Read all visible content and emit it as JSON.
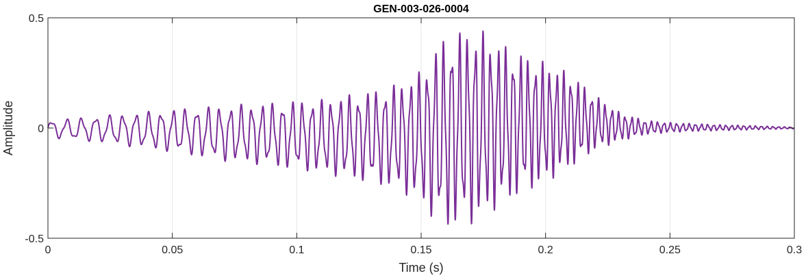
{
  "chart_data": {
    "type": "line",
    "title": "GEN-003-026-0004",
    "xlabel": "Time (s)",
    "ylabel": "Amplitude",
    "xlim": [
      0,
      0.3
    ],
    "ylim": [
      -0.5,
      0.5
    ],
    "grid": true,
    "legend": "none",
    "x_ticks": [
      0,
      0.05,
      0.1,
      0.15,
      0.2,
      0.25,
      0.3
    ],
    "x_tick_labels": [
      "0",
      "0.05",
      "0.1",
      "0.15",
      "0.2",
      "0.25",
      "0.3"
    ],
    "y_ticks": [
      -0.5,
      0,
      0.5
    ],
    "y_tick_labels": [
      "-0.5",
      "0",
      "0.5"
    ],
    "series": [
      {
        "color": "#7a2e98",
        "x": [
          0,
          0.01,
          0.02,
          0.03,
          0.04,
          0.05,
          0.06,
          0.07,
          0.08,
          0.09,
          0.1,
          0.11,
          0.12,
          0.13,
          0.14,
          0.15,
          0.155,
          0.16,
          0.165,
          0.17,
          0.175,
          0.18,
          0.19,
          0.2,
          0.21,
          0.22,
          0.23,
          0.24,
          0.25,
          0.26,
          0.27,
          0.28,
          0.29,
          0.3
        ],
        "envelope_upper": [
          0.035,
          0.045,
          0.055,
          0.065,
          0.075,
          0.085,
          0.095,
          0.1,
          0.11,
          0.115,
          0.125,
          0.13,
          0.15,
          0.17,
          0.2,
          0.26,
          0.36,
          0.42,
          0.44,
          0.45,
          0.44,
          0.4,
          0.34,
          0.3,
          0.25,
          0.15,
          0.07,
          0.035,
          0.025,
          0.02,
          0.015,
          0.012,
          0.008,
          0.004
        ],
        "envelope_lower": [
          -0.045,
          -0.055,
          -0.065,
          -0.08,
          -0.095,
          -0.11,
          -0.13,
          -0.15,
          -0.16,
          -0.175,
          -0.19,
          -0.205,
          -0.23,
          -0.25,
          -0.28,
          -0.34,
          -0.42,
          -0.46,
          -0.44,
          -0.44,
          -0.41,
          -0.37,
          -0.3,
          -0.25,
          -0.18,
          -0.1,
          -0.06,
          -0.03,
          -0.02,
          -0.015,
          -0.012,
          -0.009,
          -0.006,
          -0.003
        ]
      }
    ]
  }
}
